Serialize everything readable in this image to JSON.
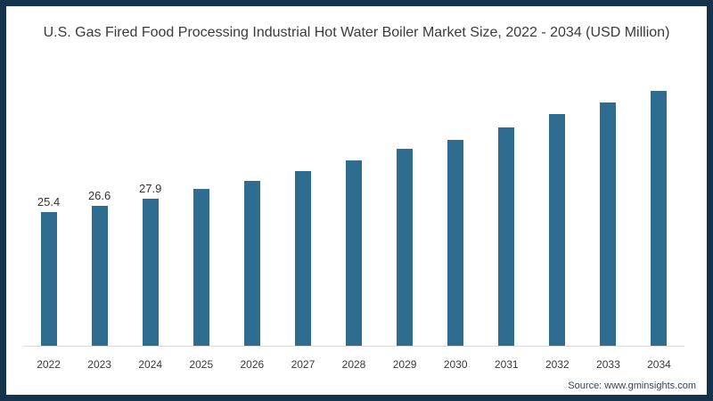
{
  "title": "U.S. Gas Fired Food Processing Industrial Hot Water Boiler Market Size, 2022 - 2034 (USD Million)",
  "source_label": "Source: www.gminsights.com",
  "colors": {
    "bar": "#2e6d8f",
    "border": "#16334d",
    "title_text": "#3b3b3b",
    "axis_line": "#d9d9d9",
    "data_label_text": "#333333",
    "tick_text": "#3a3a3a",
    "source_text": "#33475c",
    "background": "#ffffff"
  },
  "chart_data": {
    "type": "bar",
    "title": "U.S. Gas Fired Food Processing Industrial Hot Water Boiler Market Size, 2022 - 2034 (USD Million)",
    "categories": [
      "2022",
      "2023",
      "2024",
      "2025",
      "2026",
      "2027",
      "2028",
      "2029",
      "2030",
      "2031",
      "2032",
      "2033",
      "2034"
    ],
    "values": [
      25.4,
      26.6,
      27.9,
      29.8,
      31.4,
      33.2,
      35.3,
      37.5,
      39.2,
      41.6,
      44.1,
      46.3,
      48.5
    ],
    "data_labels": [
      "25.4",
      "26.6",
      "27.9",
      "",
      "",
      "",
      "",
      "",
      "",
      "",
      "",
      "",
      ""
    ],
    "xlabel": "",
    "ylabel": "",
    "ylim": [
      0,
      50
    ],
    "grid": false,
    "legend": false,
    "bar_color": "#2e6d8f",
    "axis_visible": "x-baseline-only"
  }
}
